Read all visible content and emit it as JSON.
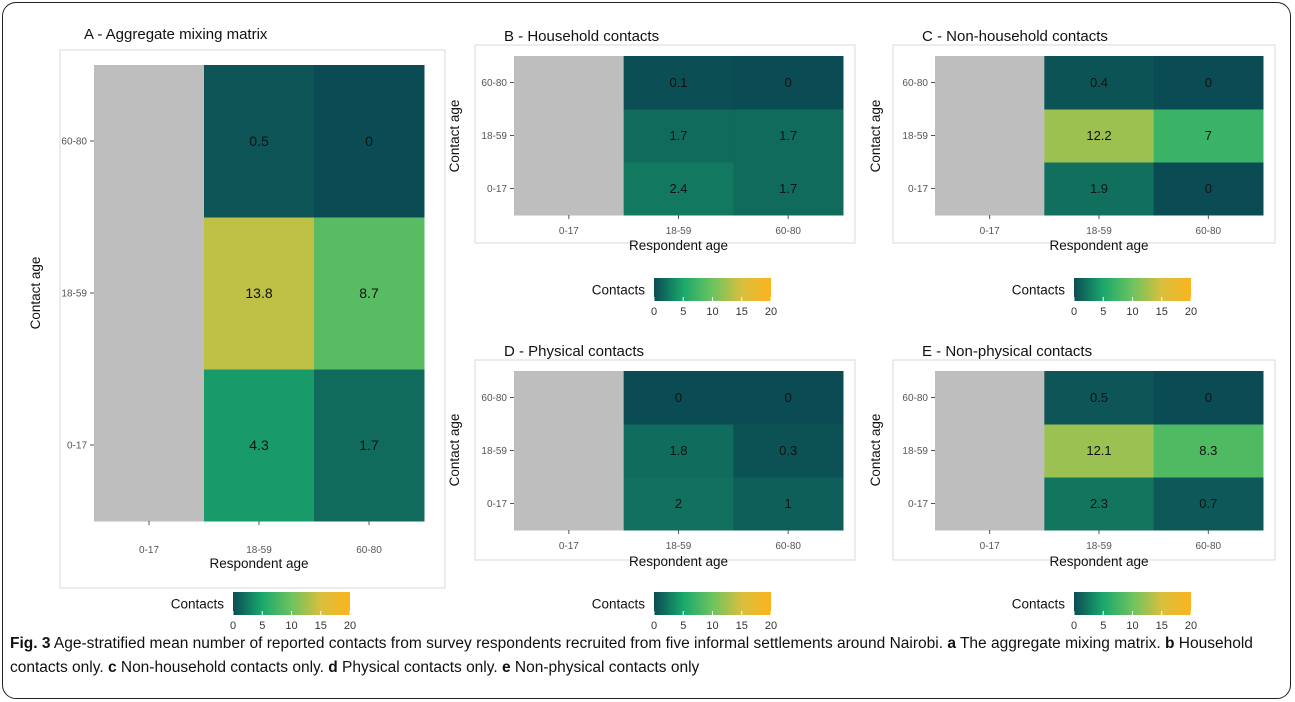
{
  "chart_data": [
    {
      "type": "heatmap",
      "title": "A - Aggregate mixing matrix",
      "xlabel": "Respondent age",
      "ylabel": "Contact age",
      "x_categories": [
        "0-17",
        "18-59",
        "60-80"
      ],
      "y_categories": [
        "0-17",
        "18-59",
        "60-80"
      ],
      "values": [
        [
          null,
          4.3,
          1.7
        ],
        [
          null,
          13.8,
          8.7
        ],
        [
          null,
          0.5,
          0
        ]
      ],
      "value_labels": [
        [
          null,
          "4.3",
          "1.7"
        ],
        [
          null,
          "13.8",
          "8.7"
        ],
        [
          null,
          "0.5",
          "0"
        ]
      ],
      "missing_color": "#bebebe",
      "color_range": [
        0,
        20
      ]
    },
    {
      "type": "heatmap",
      "title": "B - Household contacts",
      "xlabel": "Respondent age",
      "ylabel": "Contact age",
      "x_categories": [
        "0-17",
        "18-59",
        "60-80"
      ],
      "y_categories": [
        "0-17",
        "18-59",
        "60-80"
      ],
      "values": [
        [
          null,
          2.4,
          1.7
        ],
        [
          null,
          1.7,
          1.7
        ],
        [
          null,
          0.1,
          0
        ]
      ],
      "value_labels": [
        [
          null,
          "2.4",
          "1.7"
        ],
        [
          null,
          "1.7",
          "1.7"
        ],
        [
          null,
          "0.1",
          "0"
        ]
      ],
      "missing_color": "#bebebe",
      "color_range": [
        0,
        20
      ]
    },
    {
      "type": "heatmap",
      "title": "C - Non-household contacts",
      "xlabel": "Respondent age",
      "ylabel": "Contact age",
      "x_categories": [
        "0-17",
        "18-59",
        "60-80"
      ],
      "y_categories": [
        "0-17",
        "18-59",
        "60-80"
      ],
      "values": [
        [
          null,
          1.9,
          0
        ],
        [
          null,
          12.2,
          7
        ],
        [
          null,
          0.4,
          0
        ]
      ],
      "value_labels": [
        [
          null,
          "1.9",
          "0"
        ],
        [
          null,
          "12.2",
          "7"
        ],
        [
          null,
          "0.4",
          "0"
        ]
      ],
      "missing_color": "#bebebe",
      "color_range": [
        0,
        20
      ]
    },
    {
      "type": "heatmap",
      "title": "D - Physical contacts",
      "xlabel": "Respondent age",
      "ylabel": "Contact age",
      "x_categories": [
        "0-17",
        "18-59",
        "60-80"
      ],
      "y_categories": [
        "0-17",
        "18-59",
        "60-80"
      ],
      "values": [
        [
          null,
          2,
          1
        ],
        [
          null,
          1.8,
          0.3
        ],
        [
          null,
          0,
          0
        ]
      ],
      "value_labels": [
        [
          null,
          "2",
          "1"
        ],
        [
          null,
          "1.8",
          "0.3"
        ],
        [
          null,
          "0",
          "0"
        ]
      ],
      "missing_color": "#bebebe",
      "color_range": [
        0,
        20
      ]
    },
    {
      "type": "heatmap",
      "title": "E - Non-physical contacts",
      "xlabel": "Respondent age",
      "ylabel": "Contact age",
      "x_categories": [
        "0-17",
        "18-59",
        "60-80"
      ],
      "y_categories": [
        "0-17",
        "18-59",
        "60-80"
      ],
      "values": [
        [
          null,
          2.3,
          0.7
        ],
        [
          null,
          12.1,
          8.3
        ],
        [
          null,
          0.5,
          0
        ]
      ],
      "value_labels": [
        [
          null,
          "2.3",
          "0.7"
        ],
        [
          null,
          "12.1",
          "8.3"
        ],
        [
          null,
          "0.5",
          "0"
        ]
      ],
      "missing_color": "#bebebe",
      "color_range": [
        0,
        20
      ]
    }
  ],
  "legend": {
    "title": "Contacts",
    "ticks": [
      "0",
      "5",
      "10",
      "15",
      "20"
    ],
    "colors": [
      "#0b4c54",
      "#1aa86c",
      "#6cc35f",
      "#d9bf3e",
      "#fbb41e"
    ]
  },
  "caption": {
    "segments": [
      {
        "text": "Fig. 3",
        "bold": true
      },
      {
        "text": " Age-stratified mean number of reported contacts from survey respondents recruited from five informal settlements around Nairobi. ",
        "bold": false
      },
      {
        "text": "a",
        "bold": true
      },
      {
        "text": " The aggregate mixing matrix. ",
        "bold": false
      },
      {
        "text": "b",
        "bold": true
      },
      {
        "text": " Household contacts only. ",
        "bold": false
      },
      {
        "text": "c",
        "bold": true
      },
      {
        "text": " Non-household contacts only. ",
        "bold": false
      },
      {
        "text": "d",
        "bold": true
      },
      {
        "text": " Physical contacts only. ",
        "bold": false
      },
      {
        "text": "e",
        "bold": true
      },
      {
        "text": " Non-physical contacts only",
        "bold": false
      }
    ]
  }
}
